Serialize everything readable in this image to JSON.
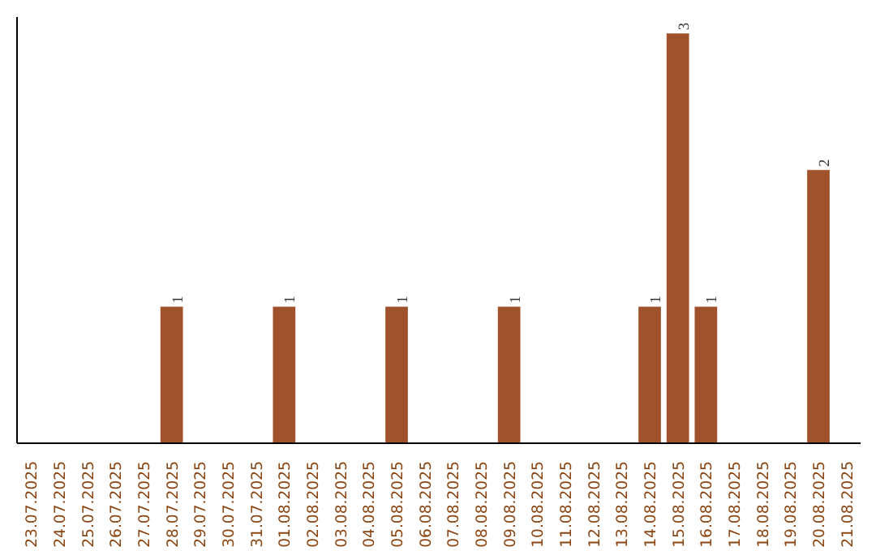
{
  "chart_data": {
    "type": "bar",
    "categories": [
      "23.07.2025",
      "24.07.2025",
      "25.07.2025",
      "26.07.2025",
      "27.07.2025",
      "28.07.2025",
      "29.07.2025",
      "30.07.2025",
      "31.07.2025",
      "01.08.2025",
      "02.08.2025",
      "03.08.2025",
      "04.08.2025",
      "05.08.2025",
      "06.08.2025",
      "07.08.2025",
      "08.08.2025",
      "09.08.2025",
      "10.08.2025",
      "11.08.2025",
      "12.08.2025",
      "13.08.2025",
      "14.08.2025",
      "15.08.2025",
      "16.08.2025",
      "17.08.2025",
      "18.08.2025",
      "19.08.2025",
      "20.08.2025",
      "21.08.2025"
    ],
    "values": [
      0,
      0,
      0,
      0,
      0,
      1,
      0,
      0,
      0,
      1,
      0,
      0,
      0,
      1,
      0,
      0,
      0,
      1,
      0,
      0,
      0,
      0,
      1,
      3,
      1,
      0,
      0,
      0,
      2,
      0
    ],
    "color": "#a0522d",
    "value_labels": [
      null,
      null,
      null,
      null,
      null,
      "1",
      null,
      null,
      null,
      "1",
      null,
      null,
      null,
      "1",
      null,
      null,
      null,
      "1",
      null,
      null,
      null,
      null,
      "1",
      "3",
      "1",
      null,
      null,
      null,
      "2",
      null
    ],
    "grid": false
  }
}
